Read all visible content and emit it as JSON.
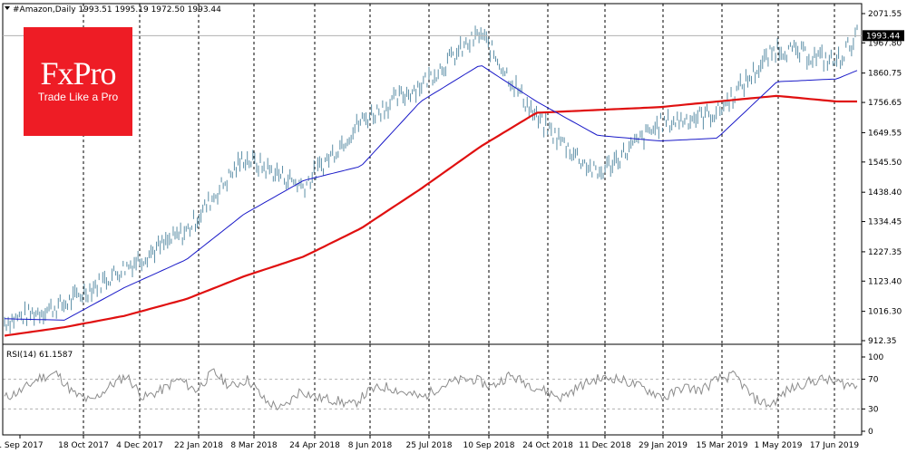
{
  "header": {
    "symbol_line": "#Amazon,Daily  1993.51 1995.19 1972.50 1993.44",
    "menu_icon": "triangle-down-icon"
  },
  "logo": {
    "brand": "FxPro",
    "tagline": "Trade Like a Pro",
    "color": "#ee1c25"
  },
  "rsi": {
    "label": "RSI(14) 61.1587",
    "levels": [
      30,
      70
    ],
    "tick_labels": [
      "100",
      "70",
      "30",
      "0"
    ]
  },
  "colors": {
    "price": "#5b8ea6",
    "ma_fast": "#1a1ac8",
    "ma_slow": "#e01010",
    "rsi": "#8c8c8c",
    "current_price_bg": "#000000"
  },
  "chart_data": [
    {
      "type": "line",
      "title": "#Amazon,Daily",
      "ylim": [
        912.35,
        2071.55
      ],
      "y_tick_labels": [
        "2071.55",
        "1967.80",
        "1860.75",
        "1756.65",
        "1649.55",
        "1545.50",
        "1438.40",
        "1334.45",
        "1227.35",
        "1123.40",
        "1016.30",
        "912.35"
      ],
      "x_tick_labels": [
        "1 Sep 2017",
        "18 Oct 2017",
        "4 Dec 2017",
        "22 Jan 2018",
        "8 Mar 2018",
        "24 Apr 2018",
        "8 Jun 2018",
        "25 Jul 2018",
        "10 Sep 2018",
        "24 Oct 2018",
        "11 Dec 2018",
        "29 Jan 2019",
        "15 Mar 2019",
        "1 May 2019",
        "17 Jun 2019"
      ],
      "current_price_label": "1993.44",
      "x": [
        "2017-09-01",
        "2017-10-18",
        "2017-12-04",
        "2018-01-22",
        "2018-03-08",
        "2018-04-24",
        "2018-06-08",
        "2018-07-25",
        "2018-09-10",
        "2018-10-24",
        "2018-12-11",
        "2019-01-29",
        "2019-03-15",
        "2019-05-01",
        "2019-06-17",
        "2019-07-03"
      ],
      "series": [
        {
          "role": "price",
          "values": [
            980,
            1040,
            1170,
            1300,
            1560,
            1460,
            1690,
            1820,
            2000,
            1700,
            1500,
            1680,
            1720,
            1950,
            1900,
            1995
          ]
        },
        {
          "role": "moving-average-fast",
          "values": [
            990,
            985,
            1100,
            1200,
            1360,
            1480,
            1530,
            1760,
            1890,
            1760,
            1640,
            1620,
            1630,
            1830,
            1840,
            1870
          ]
        },
        {
          "role": "moving-average-slow",
          "values": [
            930,
            960,
            1000,
            1060,
            1140,
            1210,
            1310,
            1450,
            1600,
            1720,
            1730,
            1740,
            1760,
            1780,
            1760,
            1760
          ]
        }
      ]
    },
    {
      "type": "line",
      "title": "RSI(14) 61.1587",
      "ylim": [
        0,
        100
      ],
      "levels": [
        30,
        70
      ],
      "values": [
        45,
        55,
        72,
        78,
        50,
        40,
        60,
        75,
        45,
        55,
        70,
        55,
        80,
        60,
        70,
        40,
        30,
        55,
        45,
        42,
        35,
        55,
        60,
        52,
        45,
        60,
        68,
        70,
        60,
        75,
        65,
        55,
        45,
        60,
        70,
        72,
        65,
        55,
        45,
        60,
        55,
        70,
        75,
        45,
        35,
        55,
        65,
        70,
        65,
        61
      ]
    }
  ]
}
